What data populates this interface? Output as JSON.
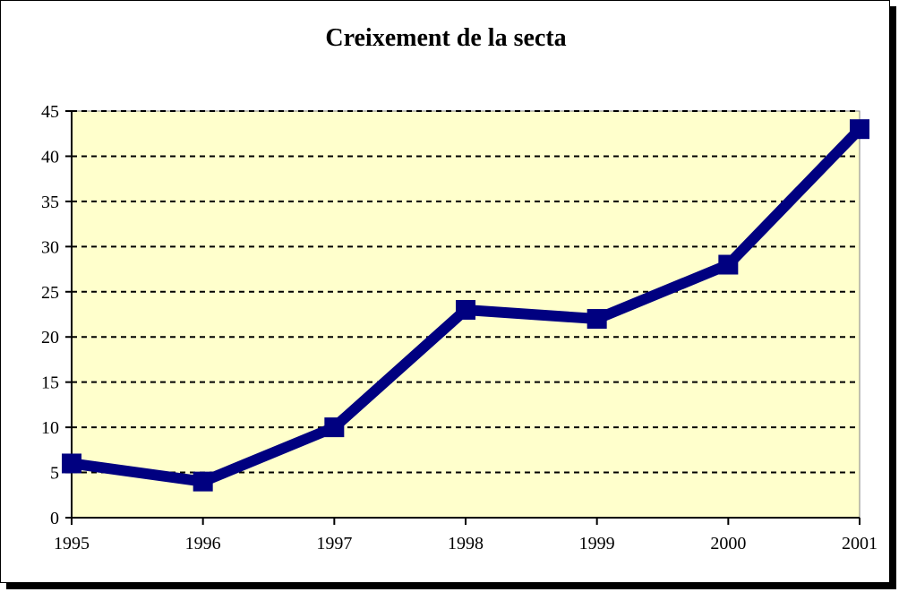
{
  "chart_data": {
    "type": "line",
    "title": "Creixement de la secta",
    "xlabel": "",
    "ylabel": "",
    "x": [
      "1995",
      "1996",
      "1997",
      "1998",
      "1999",
      "2000",
      "2001"
    ],
    "series": [
      {
        "values": [
          6,
          4,
          10,
          23,
          22,
          28,
          43
        ],
        "color": "#000080"
      }
    ],
    "ylim": [
      0,
      45
    ],
    "ytick_step": 5,
    "grid": true,
    "plot_background": "#ffffcc",
    "legend": "none"
  }
}
